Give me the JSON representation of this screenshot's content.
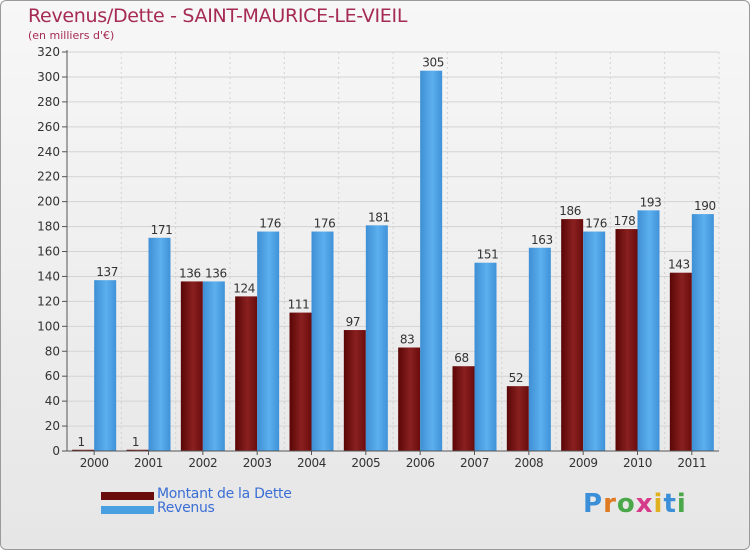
{
  "header": {
    "title": "Revenus/Dette - SAINT-MAURICE-LE-VIEIL",
    "subtitle": "(en milliers d'€)"
  },
  "colors": {
    "dette": "#7b1010",
    "revenus": "#4a9fe0",
    "title": "#a52a54",
    "legend_text": "#3b6fd6"
  },
  "legend": {
    "items": [
      {
        "label": "Montant de la Dette",
        "color": "#6b0c0c"
      },
      {
        "label": "Revenus",
        "color": "#4a9fe0"
      }
    ]
  },
  "logo": {
    "text": "Proxiti"
  },
  "chart_data": {
    "type": "bar",
    "categories": [
      "2000",
      "2001",
      "2002",
      "2003",
      "2004",
      "2005",
      "2006",
      "2007",
      "2008",
      "2009",
      "2010",
      "2011"
    ],
    "series": [
      {
        "name": "Montant de la Dette",
        "values": [
          1,
          1,
          136,
          124,
          111,
          97,
          83,
          68,
          52,
          186,
          178,
          143
        ]
      },
      {
        "name": "Revenus",
        "values": [
          137,
          171,
          136,
          176,
          176,
          181,
          305,
          151,
          163,
          176,
          193,
          190
        ]
      }
    ],
    "ylim": [
      0,
      320
    ],
    "ytick_step": 20,
    "grid": true,
    "legend_position": "bottom-left"
  }
}
